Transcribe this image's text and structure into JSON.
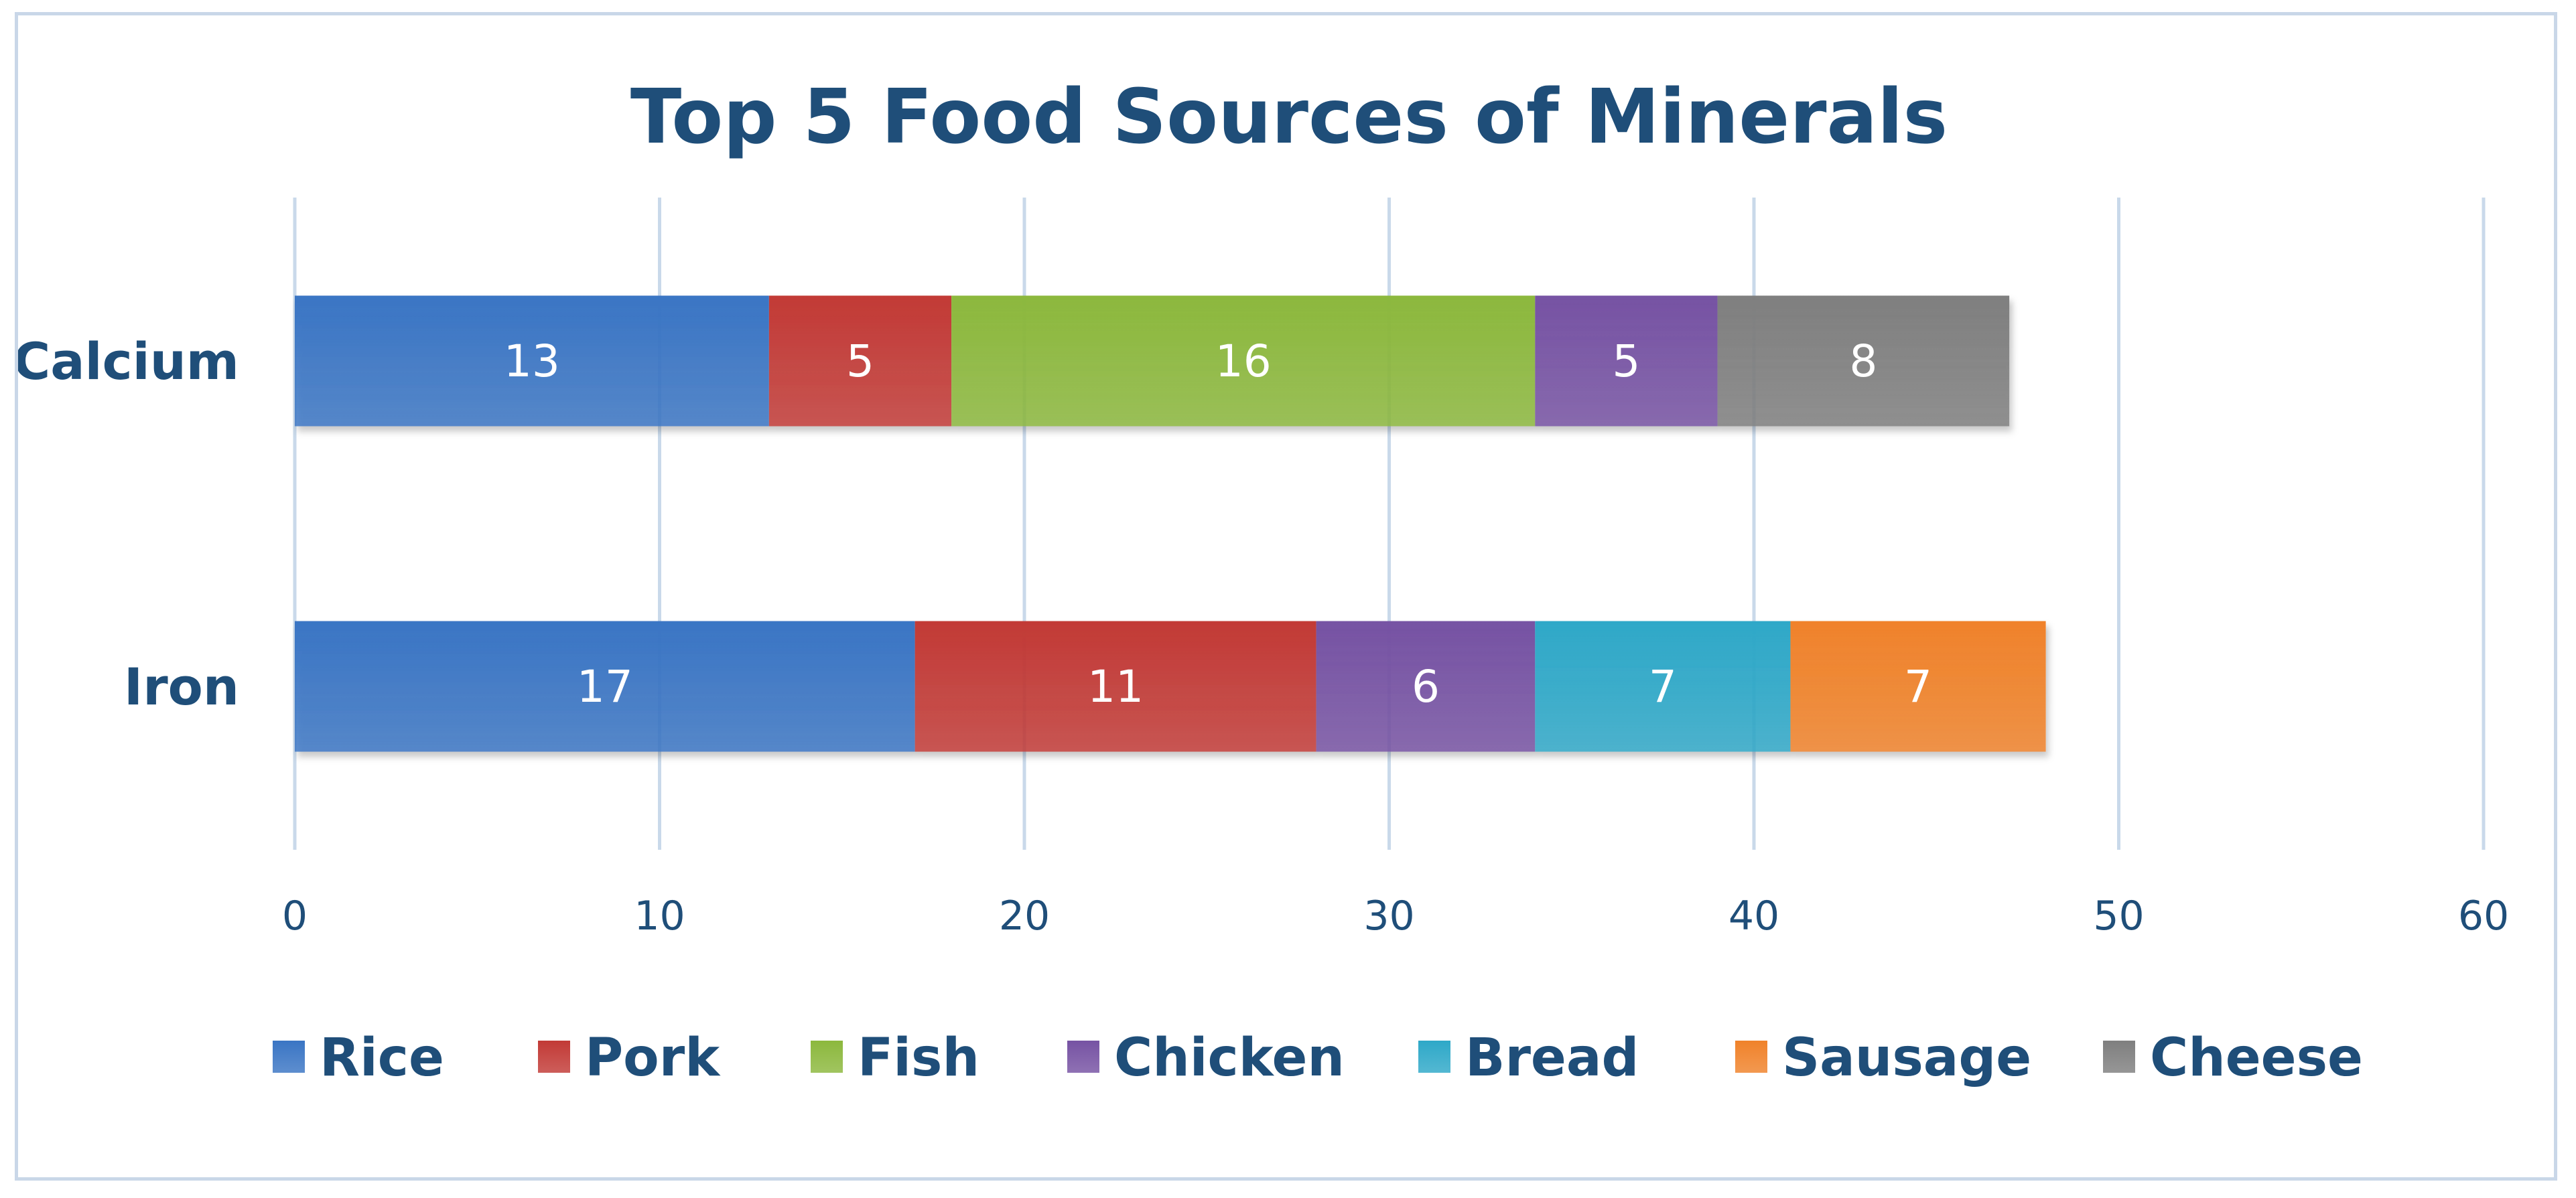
{
  "chart_data": {
    "type": "bar",
    "orientation": "horizontal",
    "stacked": true,
    "title": "Top 5 Food Sources of Minerals",
    "categories": [
      "Calcium",
      "Iron"
    ],
    "xlim": [
      0,
      60
    ],
    "xticks": [
      0,
      10,
      20,
      30,
      40,
      50,
      60
    ],
    "grid": true,
    "legend_position": "bottom",
    "series": [
      {
        "name": "Rice",
        "color": "#3a75c4",
        "values": [
          13,
          17
        ]
      },
      {
        "name": "Pork",
        "color": "#c23a36",
        "values": [
          5,
          11
        ]
      },
      {
        "name": "Fish",
        "color": "#8cb83d",
        "values": [
          16,
          null
        ]
      },
      {
        "name": "Chicken",
        "color": "#7652a3",
        "values": [
          5,
          6
        ]
      },
      {
        "name": "Bread",
        "color": "#2ea8c8",
        "values": [
          null,
          7
        ]
      },
      {
        "name": "Sausage",
        "color": "#f0822a",
        "values": [
          null,
          7
        ]
      },
      {
        "name": "Cheese",
        "color": "#7f7f7f",
        "values": [
          8,
          null
        ]
      }
    ]
  }
}
